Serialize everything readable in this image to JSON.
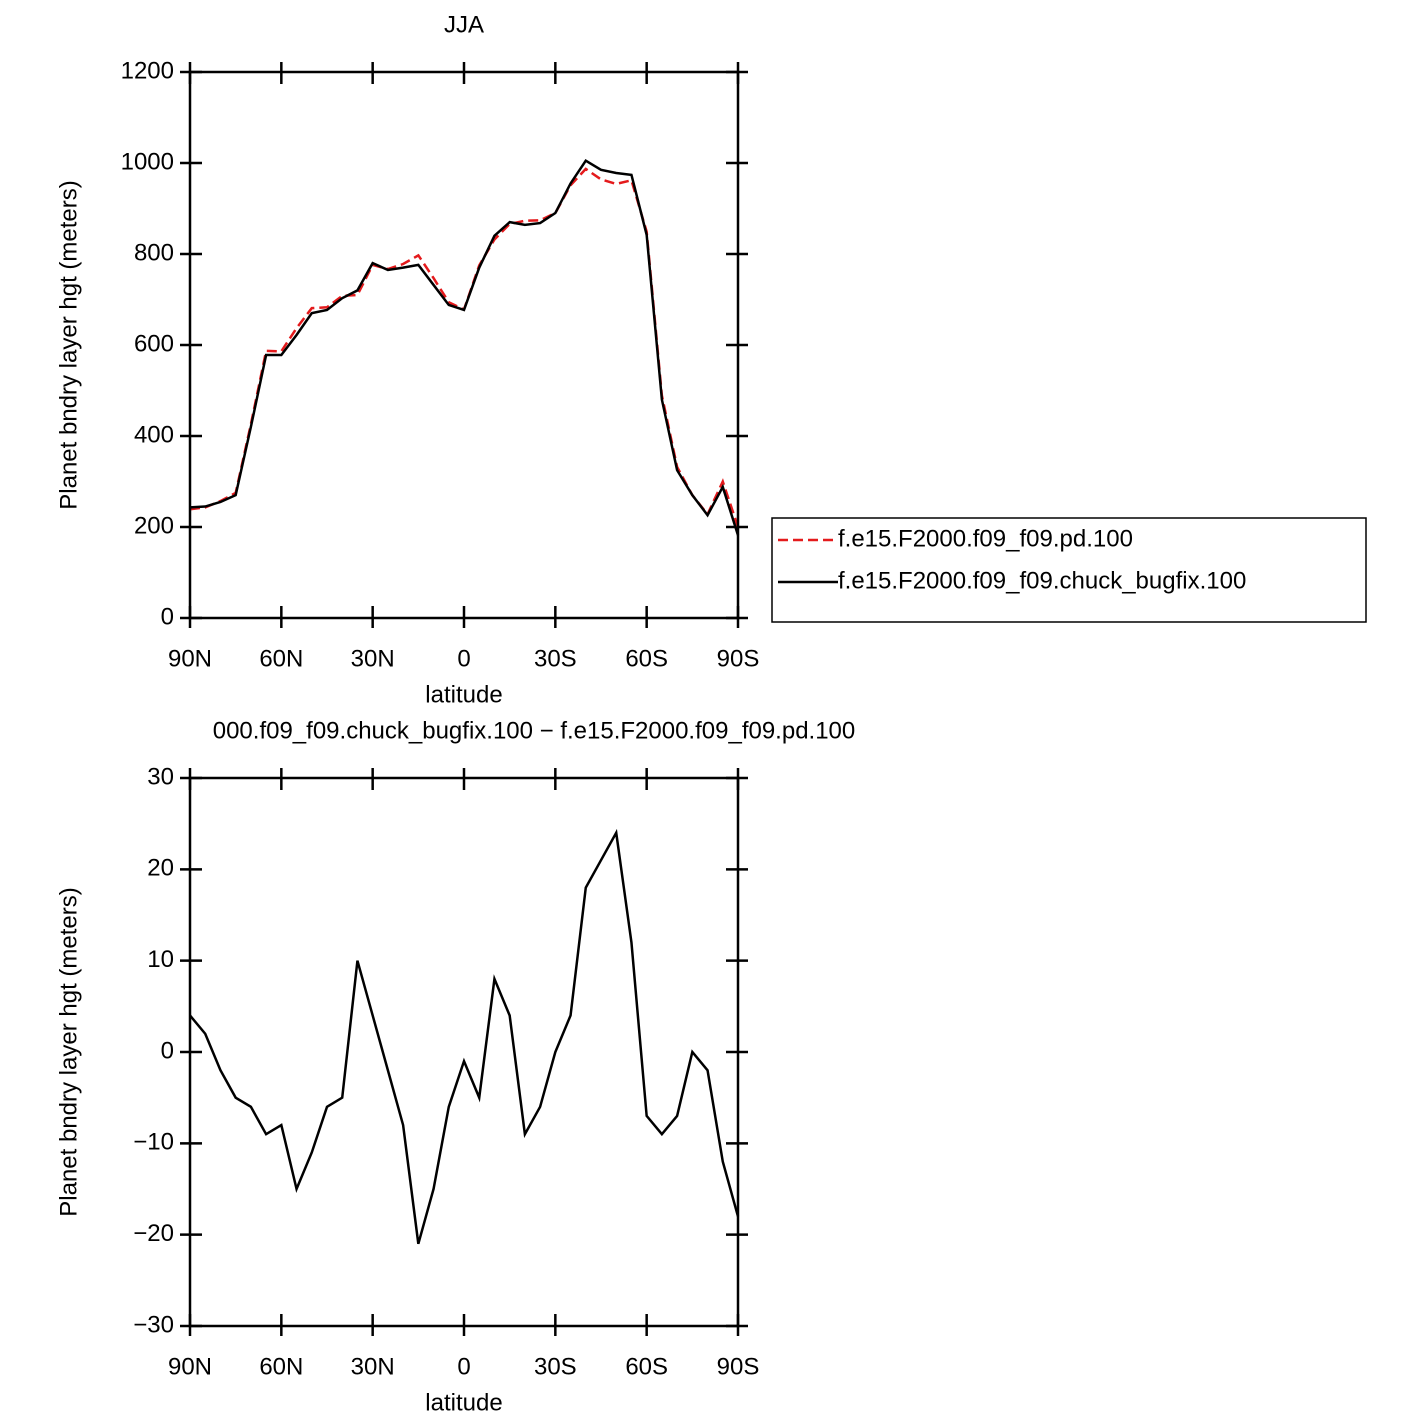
{
  "chart_data": [
    {
      "type": "line",
      "title": "JJA",
      "xlabel": "latitude",
      "ylabel": "Planet bndry layer hgt (meters)",
      "x": [
        90,
        85,
        80,
        75,
        70,
        65,
        60,
        55,
        50,
        45,
        40,
        35,
        30,
        25,
        20,
        15,
        10,
        5,
        0,
        -5,
        -10,
        -15,
        -20,
        -25,
        -30,
        -35,
        -40,
        -45,
        -50,
        -55,
        -60,
        -65,
        -70,
        -75,
        -80,
        -85,
        -90
      ],
      "series": [
        {
          "name": "f.e15.F2000.f09_f09.pd.100",
          "color": "#e41a1c",
          "style": "dashed",
          "values": [
            239,
            243,
            257,
            275,
            426,
            587,
            586,
            637,
            681,
            683,
            708,
            710,
            776,
            767,
            778,
            797,
            747,
            694,
            678,
            775,
            832,
            866,
            873,
            874,
            890,
            951,
            987,
            964,
            954,
            962,
            849,
            489,
            332,
            270,
            228,
            300,
            200
          ]
        },
        {
          "name": "f.e15.F2000.f09_f09.chuck_bugfix.100",
          "color": "#000000",
          "style": "solid",
          "values": [
            243,
            245,
            255,
            270,
            420,
            578,
            578,
            622,
            670,
            677,
            703,
            720,
            780,
            765,
            770,
            776,
            732,
            688,
            677,
            770,
            840,
            870,
            864,
            868,
            890,
            955,
            1005,
            985,
            978,
            974,
            842,
            480,
            325,
            270,
            226,
            288,
            182
          ]
        }
      ],
      "xlim": [
        90,
        -90
      ],
      "xticks": [
        {
          "value": 90,
          "label": "90N"
        },
        {
          "value": 60,
          "label": "60N"
        },
        {
          "value": 30,
          "label": "30N"
        },
        0,
        {
          "value": -30,
          "label": "30S"
        },
        {
          "value": -60,
          "label": "60S"
        },
        {
          "value": -90,
          "label": "90S"
        }
      ],
      "ylim": [
        0,
        1200
      ],
      "yticks": [
        0,
        200,
        400,
        600,
        800,
        1000,
        1200
      ],
      "legend": "right"
    },
    {
      "type": "line",
      "title": "000.f09_f09.chuck_bugfix.100 − f.e15.F2000.f09_f09.pd.100",
      "xlabel": "latitude",
      "ylabel": "Planet bndry layer hgt (meters)",
      "x": [
        90,
        85,
        80,
        75,
        70,
        65,
        60,
        55,
        50,
        45,
        40,
        35,
        30,
        25,
        20,
        15,
        10,
        5,
        0,
        -5,
        -10,
        -15,
        -20,
        -25,
        -30,
        -35,
        -40,
        -45,
        -50,
        -55,
        -60,
        -65,
        -70,
        -75,
        -80,
        -85,
        -90
      ],
      "series": [
        {
          "color": "#000000",
          "style": "solid",
          "values": [
            4,
            2,
            -2,
            -5,
            -6,
            -9,
            -8,
            -15,
            -11,
            -6,
            -5,
            10,
            4,
            -2,
            -8,
            -21,
            -15,
            -6,
            -1,
            -5,
            8,
            4,
            -9,
            -6,
            0,
            4,
            18,
            21,
            24,
            12,
            -7,
            -9,
            -7,
            0,
            -2,
            -12,
            -18
          ]
        }
      ],
      "xlim": [
        90,
        -90
      ],
      "xticks": [
        {
          "value": 90,
          "label": "90N"
        },
        {
          "value": 60,
          "label": "60N"
        },
        {
          "value": 30,
          "label": "30N"
        },
        0,
        {
          "value": -30,
          "label": "30S"
        },
        {
          "value": -60,
          "label": "60S"
        },
        {
          "value": -90,
          "label": "90S"
        }
      ],
      "ylim": [
        -30,
        30
      ],
      "yticks": [
        {
          "value": -30,
          "label": "−30"
        },
        {
          "value": -20,
          "label": "−20"
        },
        {
          "value": -10,
          "label": "−10"
        },
        0,
        10,
        20,
        30
      ]
    }
  ]
}
